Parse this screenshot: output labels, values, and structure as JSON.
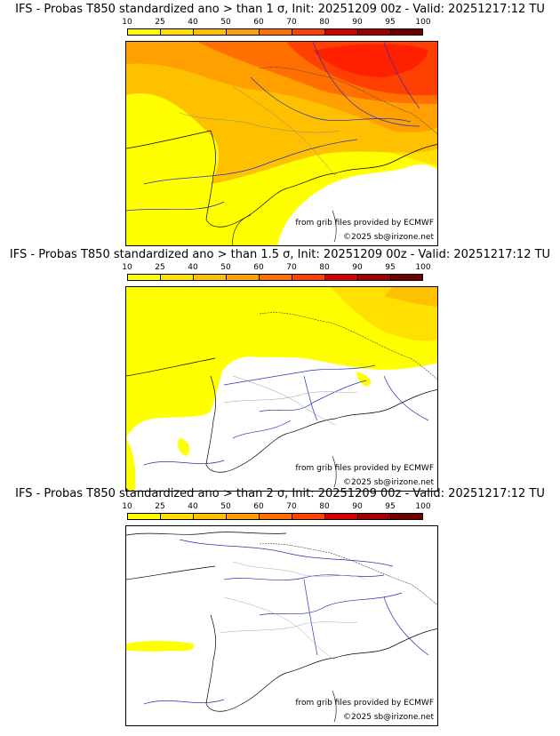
{
  "colorbar": {
    "ticks": [
      "10",
      "25",
      "40",
      "50",
      "60",
      "70",
      "80",
      "90",
      "95",
      "100"
    ],
    "colors": [
      "#ffff00",
      "#ffe000",
      "#ffc000",
      "#ffa000",
      "#ff7000",
      "#ff4000",
      "#d00000",
      "#a00000",
      "#700000"
    ]
  },
  "panels": [
    {
      "title": "IFS - Probas T850  standardized ano > than 1 σ, Init: 20251209 00z - Valid: 20251217:12 TU",
      "credit_source": "from grib files provided by ECMWF",
      "credit_site": "©2025 sb@irizone.net",
      "max_probability_percent": 80
    },
    {
      "title": "IFS - Probas T850  standardized ano > than 1.5 σ, Init: 20251209 00z - Valid: 20251217:12 TU",
      "credit_source": "from grib files provided by ECMWF",
      "credit_site": "©2025 sb@irizone.net",
      "max_probability_percent": 60
    },
    {
      "title": "IFS - Probas T850  standardized ano > than 2 σ, Init: 20251209 00z - Valid: 20251217:12 TU",
      "credit_source": "from grib files provided by ECMWF",
      "credit_site": "©2025 sb@irizone.net",
      "max_probability_percent": 25
    }
  ]
}
